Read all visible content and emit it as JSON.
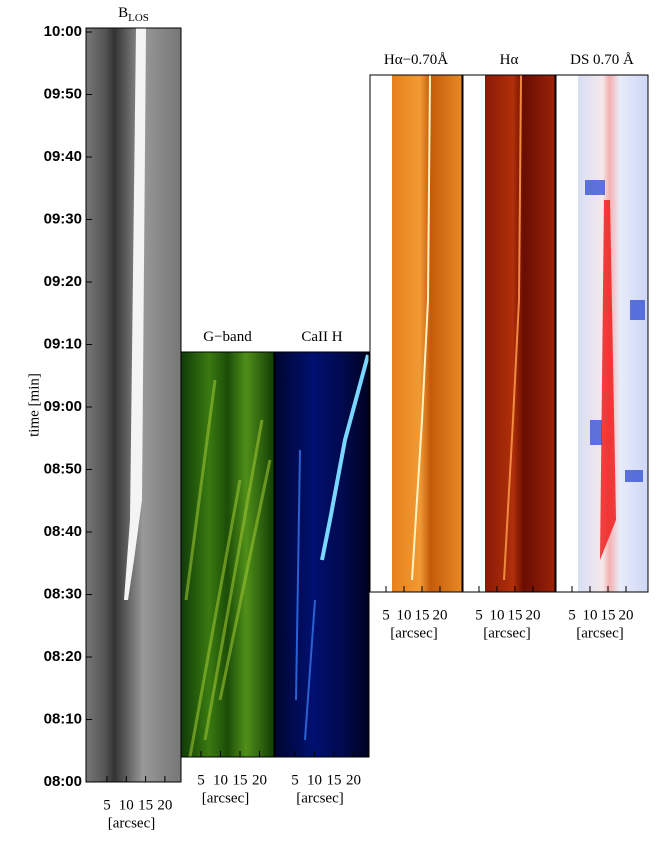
{
  "y_axis": {
    "label": "time [min]",
    "ticks": [
      "10:00",
      "09:50",
      "09:40",
      "09:30",
      "09:20",
      "09:10",
      "09:00",
      "08:50",
      "08:40",
      "08:30",
      "08:20",
      "08:10",
      "08:00"
    ]
  },
  "panels": [
    {
      "title": "B",
      "title_subscript": "LOS",
      "x_ticks": [
        "5",
        "10",
        "15",
        "20"
      ],
      "x_label": "[arcsec]"
    },
    {
      "title": "G−band",
      "x_ticks": [
        "5",
        "10",
        "15",
        "20"
      ],
      "x_label": "[arcsec]"
    },
    {
      "title": "CaII H",
      "x_ticks": [
        "5",
        "10",
        "15",
        "20"
      ],
      "x_label": "[arcsec]"
    },
    {
      "title": "Hα−0.70Å",
      "x_ticks": [
        "5",
        "10",
        "15",
        "20"
      ],
      "x_label": "[arcsec]"
    },
    {
      "title": "Hα",
      "x_ticks": [
        "5",
        "10",
        "15",
        "20"
      ],
      "x_label": "[arcsec]"
    },
    {
      "title": "DS 0.70 Å",
      "x_ticks": [
        "5",
        "10",
        "15",
        "20"
      ],
      "x_label": "[arcsec]"
    }
  ]
}
